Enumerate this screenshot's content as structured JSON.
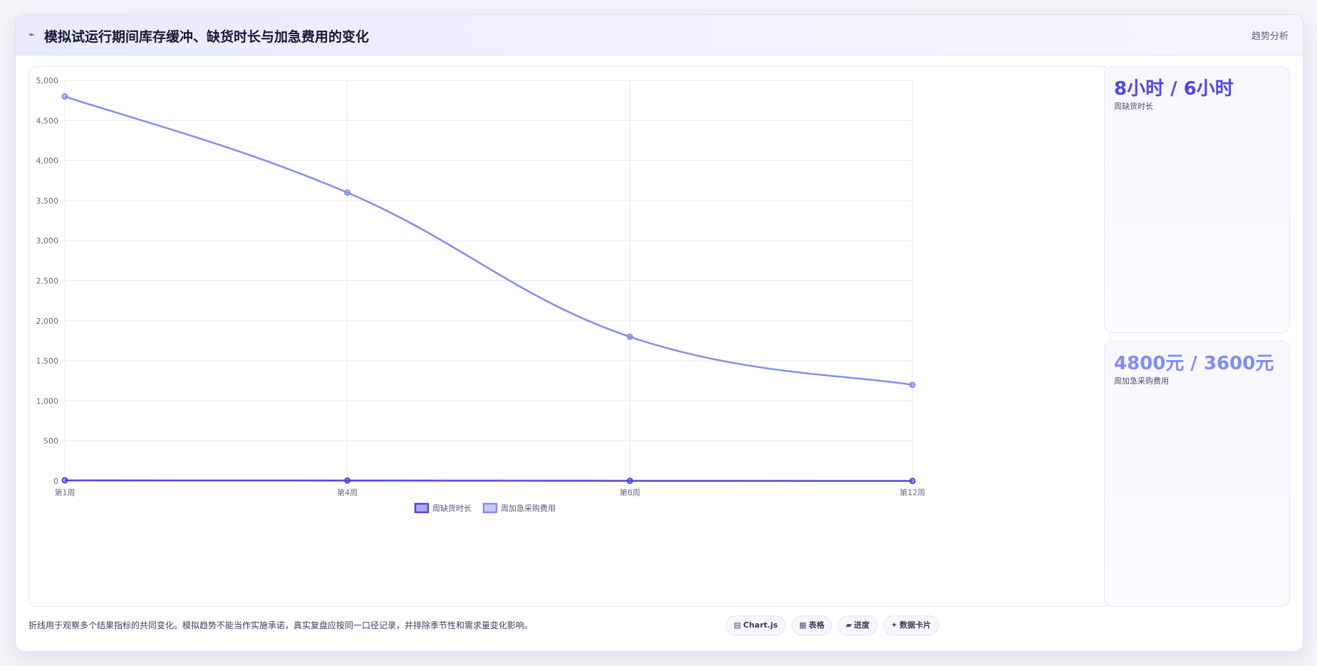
{
  "header": {
    "title": "模拟试运行期间库存缓冲、缺货时长与加急费用的变化",
    "tag": "趋势分析"
  },
  "chart_data": {
    "type": "line",
    "categories": [
      "第1周",
      "第4周",
      "第8周",
      "第12周"
    ],
    "series": [
      {
        "name": "周缺货时长",
        "values": [
          8,
          6,
          2,
          1
        ],
        "color": "#4f46e5"
      },
      {
        "name": "周加急采购费用",
        "values": [
          4800,
          3600,
          1800,
          1200
        ],
        "color": "#818cf8"
      }
    ],
    "ylim": [
      0,
      5000
    ],
    "yticks": [
      0,
      500,
      1000,
      1500,
      2000,
      2500,
      3000,
      3500,
      4000,
      4500,
      5000
    ],
    "grid": true,
    "legend_position": "bottom-center"
  },
  "kpis": [
    {
      "value": "8小时 / 6小时",
      "label": "周缺货时长",
      "color": "#4f46e5"
    },
    {
      "value": "4800元 / 3600元",
      "label": "周加急采购费用",
      "color": "#818cf8"
    }
  ],
  "footnote": "折线用于观察多个结果指标的共同变化。模拟趋势不能当作实施承诺，真实复盘应按同一口径记录，并排除季节性和需求量变化影响。",
  "pills": [
    {
      "icon": "▤",
      "icon_name": "chart-icon",
      "label": "Chart.js"
    },
    {
      "icon": "▦",
      "icon_name": "table-icon",
      "label": "表格"
    },
    {
      "icon": "▰",
      "icon_name": "progress-icon",
      "label": "进度"
    },
    {
      "icon": "✦",
      "icon_name": "sparkle-icon",
      "label": "数据卡片"
    }
  ]
}
